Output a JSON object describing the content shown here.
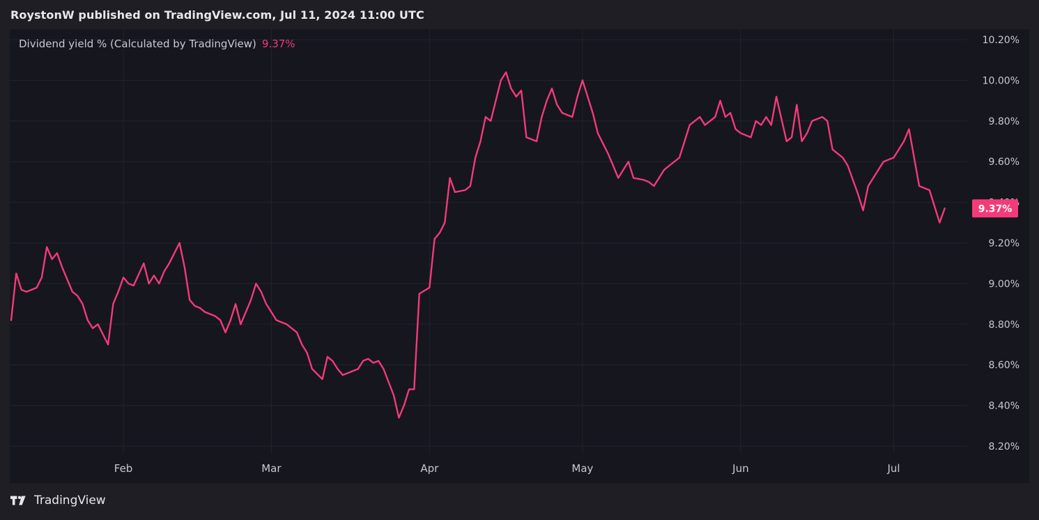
{
  "header": {
    "published": "RoystonW published on TradingView.com, Jul 11, 2024 11:00 UTC"
  },
  "footer": {
    "brand": "TradingView",
    "logo_icon": "tradingview-logo-icon"
  },
  "colors": {
    "line": "#f23b78",
    "grid": "#23232c",
    "plot_bg": "#16161f",
    "page_bg": "#1e1e24",
    "axis_text": "#c7c9d1"
  },
  "chart_data": {
    "type": "line",
    "legend": {
      "label": "Dividend yield % (Calculated by TradingView)",
      "value": "9.37%"
    },
    "last_value_label": "9.37%",
    "ylim": [
      8.2,
      10.2
    ],
    "yticks": [
      8.2,
      8.4,
      8.6,
      8.8,
      9.0,
      9.2,
      9.4,
      9.6,
      9.8,
      10.0,
      10.2
    ],
    "ytick_labels": [
      "8.20%",
      "8.40%",
      "8.60%",
      "8.80%",
      "9.00%",
      "9.20%",
      "9.40%",
      "9.60%",
      "9.80%",
      "10.00%",
      "10.20%"
    ],
    "xlim": [
      "2024-01-10",
      "2024-07-15"
    ],
    "xticks": [
      {
        "date": "2024-02-01",
        "label": "Feb"
      },
      {
        "date": "2024-03-01",
        "label": "Mar"
      },
      {
        "date": "2024-04-01",
        "label": "Apr"
      },
      {
        "date": "2024-05-01",
        "label": "May"
      },
      {
        "date": "2024-06-01",
        "label": "Jun"
      },
      {
        "date": "2024-07-01",
        "label": "Jul"
      }
    ],
    "grid": true,
    "series": [
      {
        "color": "#f23b78",
        "points": [
          [
            "2024-01-10",
            8.82
          ],
          [
            "2024-01-11",
            9.05
          ],
          [
            "2024-01-12",
            8.97
          ],
          [
            "2024-01-13",
            8.96
          ],
          [
            "2024-01-15",
            8.98
          ],
          [
            "2024-01-16",
            9.03
          ],
          [
            "2024-01-17",
            9.18
          ],
          [
            "2024-01-18",
            9.12
          ],
          [
            "2024-01-19",
            9.15
          ],
          [
            "2024-01-20",
            9.08
          ],
          [
            "2024-01-22",
            8.96
          ],
          [
            "2024-01-23",
            8.94
          ],
          [
            "2024-01-24",
            8.9
          ],
          [
            "2024-01-25",
            8.82
          ],
          [
            "2024-01-26",
            8.78
          ],
          [
            "2024-01-27",
            8.8
          ],
          [
            "2024-01-29",
            8.7
          ],
          [
            "2024-01-30",
            8.9
          ],
          [
            "2024-01-31",
            8.96
          ],
          [
            "2024-02-01",
            9.03
          ],
          [
            "2024-02-02",
            9.0
          ],
          [
            "2024-02-03",
            8.99
          ],
          [
            "2024-02-05",
            9.1
          ],
          [
            "2024-02-06",
            9.0
          ],
          [
            "2024-02-07",
            9.04
          ],
          [
            "2024-02-08",
            9.0
          ],
          [
            "2024-02-09",
            9.06
          ],
          [
            "2024-02-10",
            9.1
          ],
          [
            "2024-02-12",
            9.2
          ],
          [
            "2024-02-13",
            9.08
          ],
          [
            "2024-02-14",
            8.92
          ],
          [
            "2024-02-15",
            8.89
          ],
          [
            "2024-02-16",
            8.88
          ],
          [
            "2024-02-17",
            8.86
          ],
          [
            "2024-02-19",
            8.84
          ],
          [
            "2024-02-20",
            8.82
          ],
          [
            "2024-02-21",
            8.76
          ],
          [
            "2024-02-22",
            8.82
          ],
          [
            "2024-02-23",
            8.9
          ],
          [
            "2024-02-24",
            8.8
          ],
          [
            "2024-02-26",
            8.92
          ],
          [
            "2024-02-27",
            9.0
          ],
          [
            "2024-02-28",
            8.96
          ],
          [
            "2024-02-29",
            8.9
          ],
          [
            "2024-03-01",
            8.86
          ],
          [
            "2024-03-02",
            8.82
          ],
          [
            "2024-03-04",
            8.8
          ],
          [
            "2024-03-05",
            8.78
          ],
          [
            "2024-03-06",
            8.76
          ],
          [
            "2024-03-07",
            8.7
          ],
          [
            "2024-03-08",
            8.66
          ],
          [
            "2024-03-09",
            8.58
          ],
          [
            "2024-03-11",
            8.53
          ],
          [
            "2024-03-12",
            8.64
          ],
          [
            "2024-03-13",
            8.62
          ],
          [
            "2024-03-14",
            8.58
          ],
          [
            "2024-03-15",
            8.55
          ],
          [
            "2024-03-16",
            8.56
          ],
          [
            "2024-03-18",
            8.58
          ],
          [
            "2024-03-19",
            8.62
          ],
          [
            "2024-03-20",
            8.63
          ],
          [
            "2024-03-21",
            8.61
          ],
          [
            "2024-03-22",
            8.62
          ],
          [
            "2024-03-23",
            8.58
          ],
          [
            "2024-03-25",
            8.45
          ],
          [
            "2024-03-26",
            8.34
          ],
          [
            "2024-03-27",
            8.4
          ],
          [
            "2024-03-28",
            8.48
          ],
          [
            "2024-03-29",
            8.48
          ],
          [
            "2024-03-30",
            8.95
          ],
          [
            "2024-04-01",
            8.98
          ],
          [
            "2024-04-02",
            9.22
          ],
          [
            "2024-04-03",
            9.25
          ],
          [
            "2024-04-04",
            9.3
          ],
          [
            "2024-04-05",
            9.52
          ],
          [
            "2024-04-06",
            9.45
          ],
          [
            "2024-04-08",
            9.46
          ],
          [
            "2024-04-09",
            9.48
          ],
          [
            "2024-04-10",
            9.62
          ],
          [
            "2024-04-11",
            9.7
          ],
          [
            "2024-04-12",
            9.82
          ],
          [
            "2024-04-13",
            9.8
          ],
          [
            "2024-04-15",
            10.0
          ],
          [
            "2024-04-16",
            10.04
          ],
          [
            "2024-04-17",
            9.96
          ],
          [
            "2024-04-18",
            9.92
          ],
          [
            "2024-04-19",
            9.95
          ],
          [
            "2024-04-20",
            9.72
          ],
          [
            "2024-04-22",
            9.7
          ],
          [
            "2024-04-23",
            9.82
          ],
          [
            "2024-04-24",
            9.9
          ],
          [
            "2024-04-25",
            9.96
          ],
          [
            "2024-04-26",
            9.88
          ],
          [
            "2024-04-27",
            9.84
          ],
          [
            "2024-04-29",
            9.82
          ],
          [
            "2024-04-30",
            9.92
          ],
          [
            "2024-05-01",
            10.0
          ],
          [
            "2024-05-02",
            9.92
          ],
          [
            "2024-05-03",
            9.84
          ],
          [
            "2024-05-04",
            9.74
          ],
          [
            "2024-05-06",
            9.64
          ],
          [
            "2024-05-07",
            9.58
          ],
          [
            "2024-05-08",
            9.52
          ],
          [
            "2024-05-09",
            9.56
          ],
          [
            "2024-05-10",
            9.6
          ],
          [
            "2024-05-11",
            9.52
          ],
          [
            "2024-05-13",
            9.51
          ],
          [
            "2024-05-14",
            9.5
          ],
          [
            "2024-05-15",
            9.48
          ],
          [
            "2024-05-16",
            9.52
          ],
          [
            "2024-05-17",
            9.56
          ],
          [
            "2024-05-18",
            9.58
          ],
          [
            "2024-05-20",
            9.62
          ],
          [
            "2024-05-21",
            9.7
          ],
          [
            "2024-05-22",
            9.78
          ],
          [
            "2024-05-23",
            9.8
          ],
          [
            "2024-05-24",
            9.82
          ],
          [
            "2024-05-25",
            9.78
          ],
          [
            "2024-05-27",
            9.82
          ],
          [
            "2024-05-28",
            9.9
          ],
          [
            "2024-05-29",
            9.82
          ],
          [
            "2024-05-30",
            9.84
          ],
          [
            "2024-05-31",
            9.76
          ],
          [
            "2024-06-01",
            9.74
          ],
          [
            "2024-06-03",
            9.72
          ],
          [
            "2024-06-04",
            9.8
          ],
          [
            "2024-06-05",
            9.78
          ],
          [
            "2024-06-06",
            9.82
          ],
          [
            "2024-06-07",
            9.78
          ],
          [
            "2024-06-08",
            9.92
          ],
          [
            "2024-06-10",
            9.7
          ],
          [
            "2024-06-11",
            9.72
          ],
          [
            "2024-06-12",
            9.88
          ],
          [
            "2024-06-13",
            9.7
          ],
          [
            "2024-06-14",
            9.74
          ],
          [
            "2024-06-15",
            9.8
          ],
          [
            "2024-06-17",
            9.82
          ],
          [
            "2024-06-18",
            9.8
          ],
          [
            "2024-06-19",
            9.66
          ],
          [
            "2024-06-20",
            9.64
          ],
          [
            "2024-06-21",
            9.62
          ],
          [
            "2024-06-22",
            9.58
          ],
          [
            "2024-06-24",
            9.44
          ],
          [
            "2024-06-25",
            9.36
          ],
          [
            "2024-06-26",
            9.48
          ],
          [
            "2024-06-27",
            9.52
          ],
          [
            "2024-06-28",
            9.56
          ],
          [
            "2024-06-29",
            9.6
          ],
          [
            "2024-07-01",
            9.62
          ],
          [
            "2024-07-02",
            9.66
          ],
          [
            "2024-07-03",
            9.7
          ],
          [
            "2024-07-04",
            9.76
          ],
          [
            "2024-07-05",
            9.62
          ],
          [
            "2024-07-06",
            9.48
          ],
          [
            "2024-07-08",
            9.46
          ],
          [
            "2024-07-09",
            9.38
          ],
          [
            "2024-07-10",
            9.3
          ],
          [
            "2024-07-11",
            9.37
          ]
        ]
      }
    ]
  }
}
